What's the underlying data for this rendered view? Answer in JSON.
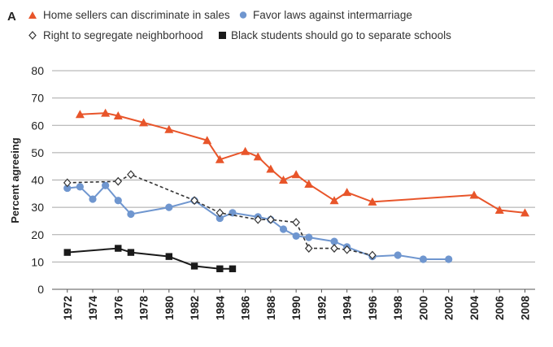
{
  "panel_label": "A",
  "chart_data": {
    "type": "line",
    "ylabel": "Percent agreeing",
    "xlabel": "",
    "ylim": [
      0,
      80
    ],
    "yticks": [
      0,
      10,
      20,
      30,
      40,
      50,
      60,
      70,
      80
    ],
    "xlim": [
      1970.8,
      2008.8
    ],
    "xticks": [
      1972,
      1974,
      1976,
      1978,
      1980,
      1982,
      1984,
      1986,
      1988,
      1990,
      1992,
      1994,
      1996,
      1998,
      2000,
      2002,
      2004,
      2006,
      2008
    ],
    "xtick_labels": [
      "1972",
      "1974",
      "1976",
      "1978",
      "1980",
      "1982",
      "1984",
      "1986",
      "1988",
      "1990",
      "1992",
      "1994",
      "1996",
      "1998",
      "2000",
      "2002",
      "2004",
      "2006",
      "2008"
    ],
    "grid": "horizontal",
    "legend_position": "top",
    "series": [
      {
        "name": "Home sellers can discriminate in sales",
        "marker": "triangle",
        "color": "#e8552a",
        "line_style": "solid",
        "x": [
          1973,
          1975,
          1976,
          1978,
          1980,
          1983,
          1984,
          1986,
          1987,
          1988,
          1989,
          1990,
          1991,
          1993,
          1994,
          1996,
          2004,
          2006,
          2008
        ],
        "y": [
          64,
          64.5,
          63.5,
          61,
          58.5,
          54.5,
          47.5,
          50.5,
          48.5,
          44,
          40,
          42,
          38.5,
          32.5,
          35.5,
          32,
          34.5,
          29,
          28
        ]
      },
      {
        "name": "Favor laws against intermarriage",
        "marker": "circle",
        "color": "#6f96cf",
        "line_style": "solid",
        "x": [
          1972,
          1973,
          1974,
          1975,
          1976,
          1977,
          1980,
          1982,
          1984,
          1985,
          1987,
          1988,
          1989,
          1990,
          1991,
          1993,
          1994,
          1996,
          1998,
          2000,
          2002
        ],
        "y": [
          37,
          37.5,
          33,
          38,
          32.5,
          27.5,
          30,
          32.5,
          26,
          28,
          26.5,
          25.5,
          22,
          19.5,
          19,
          17.5,
          15.5,
          12,
          12.5,
          11,
          11
        ]
      },
      {
        "name": "Right to segregate neighborhood",
        "marker": "diamond-open",
        "color": "#333333",
        "line_style": "dashed",
        "x": [
          1972,
          1976,
          1977,
          1982,
          1984,
          1987,
          1988,
          1990,
          1991,
          1993,
          1994,
          1996
        ],
        "y": [
          39,
          39.5,
          42,
          32.5,
          28,
          25.5,
          25.5,
          24.5,
          15,
          15,
          14.5,
          12.5
        ]
      },
      {
        "name": "Black students should go to separate schools",
        "marker": "square",
        "color": "#1a1a1a",
        "line_style": "solid",
        "x": [
          1972,
          1976,
          1977,
          1980,
          1982,
          1984,
          1985
        ],
        "y": [
          13.5,
          15,
          13.5,
          12,
          8.5,
          7.5,
          7.5
        ]
      }
    ]
  }
}
